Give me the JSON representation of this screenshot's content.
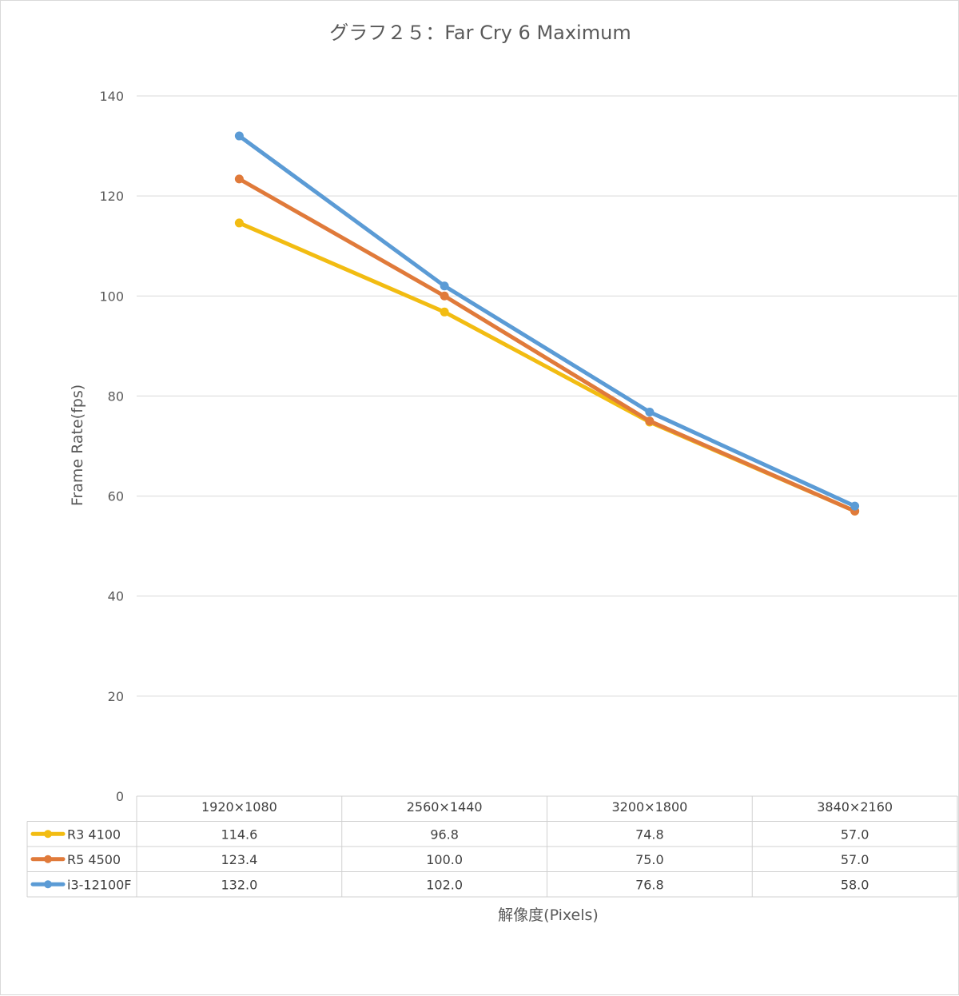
{
  "chart_data": {
    "type": "line",
    "title": "グラフ２５：Far Cry 6 Maximum",
    "xlabel": "解像度(Pixels)",
    "ylabel": "Frame Rate(fps)",
    "ylim": [
      0,
      140
    ],
    "yticks": [
      "0",
      "20",
      "40",
      "60",
      "80",
      "100",
      "120",
      "140"
    ],
    "ytick_values": [
      0,
      20,
      40,
      60,
      80,
      100,
      120,
      140
    ],
    "grid": true,
    "legend": "data-table",
    "categories": [
      "1920×1080",
      "2560×1440",
      "3200×1800",
      "3840×2160"
    ],
    "series": [
      {
        "name": "R3 4100",
        "color": "#F2BC12",
        "values": [
          114.6,
          96.8,
          74.8,
          57.0
        ],
        "labels": [
          "114.6",
          "96.8",
          "74.8",
          "57.0"
        ]
      },
      {
        "name": "R5 4500",
        "color": "#E07A3A",
        "values": [
          123.4,
          100.0,
          75.0,
          57.0
        ],
        "labels": [
          "123.4",
          "100.0",
          "75.0",
          "57.0"
        ]
      },
      {
        "name": "i3-12100F",
        "color": "#5B9BD5",
        "values": [
          132.0,
          102.0,
          76.8,
          58.0
        ],
        "labels": [
          "132.0",
          "102.0",
          "76.8",
          "58.0"
        ]
      }
    ]
  }
}
